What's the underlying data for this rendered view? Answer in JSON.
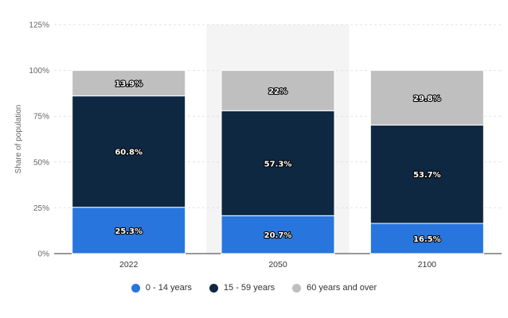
{
  "chart_data": {
    "type": "bar",
    "stacked": true,
    "categories": [
      "2022",
      "2050",
      "2100"
    ],
    "series": [
      {
        "name": "0 - 14 years",
        "values": [
          25.3,
          20.7,
          16.5
        ],
        "labels": [
          "25.3%",
          "20.7%",
          "16.5%"
        ],
        "color": "#2876dd"
      },
      {
        "name": "15 - 59 years",
        "values": [
          60.8,
          57.3,
          53.7
        ],
        "labels": [
          "60.8%",
          "57.3%",
          "53.7%"
        ],
        "color": "#0f2841"
      },
      {
        "name": "60 years and over",
        "values": [
          13.9,
          22,
          29.8
        ],
        "labels": [
          "13.9%",
          "22%",
          "29.8%"
        ],
        "color": "#bfbfbf"
      }
    ],
    "ylabel": "Share of population",
    "ylim": [
      0,
      125
    ],
    "yticks": [
      "0%",
      "25%",
      "50%",
      "75%",
      "100%",
      "125%"
    ],
    "yticks_values": [
      0,
      25,
      50,
      75,
      100,
      125
    ],
    "grid": true,
    "highlighted_category": "2050",
    "legend_position": "bottom"
  }
}
